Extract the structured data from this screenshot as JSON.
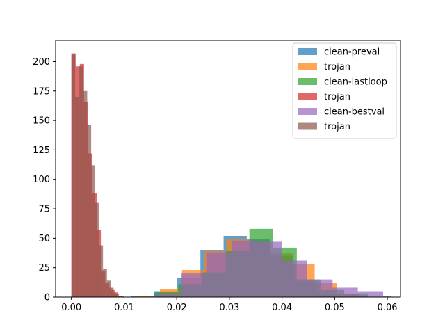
{
  "chart_data": {
    "type": "bar",
    "kind": "overlaid-histogram",
    "title": "",
    "xlabel": "",
    "ylabel": "",
    "xlim": [
      -0.003,
      0.0625
    ],
    "ylim": [
      0,
      218
    ],
    "xticks": [
      0.0,
      0.01,
      0.02,
      0.03,
      0.04,
      0.05,
      0.06
    ],
    "xtick_labels": [
      "0.00",
      "0.01",
      "0.02",
      "0.03",
      "0.04",
      "0.05",
      "0.06"
    ],
    "yticks": [
      0,
      25,
      50,
      75,
      100,
      125,
      150,
      175,
      200
    ],
    "ytick_labels": [
      "0",
      "25",
      "50",
      "75",
      "100",
      "125",
      "150",
      "175",
      "200"
    ],
    "grid": false,
    "legend_position": "top-right",
    "bar_opacity": 0.7,
    "series": [
      {
        "name": "clean-preval",
        "color": "#1f77b4",
        "bin_edges": [
          0.0113,
          0.0157,
          0.0201,
          0.0245,
          0.0289,
          0.0333,
          0.0377,
          0.0421,
          0.0465,
          0.0509
        ],
        "counts": [
          1,
          5,
          16,
          40,
          52,
          49,
          35,
          13,
          3
        ]
      },
      {
        "name": "trojan",
        "color": "#ff7f0e",
        "bin_edges": [
          0.0126,
          0.0168,
          0.021,
          0.0252,
          0.0294,
          0.0336,
          0.0378,
          0.042,
          0.0462,
          0.0504,
          0.0546
        ],
        "counts": [
          1,
          7,
          23,
          39,
          49,
          47,
          37,
          28,
          12,
          3
        ]
      },
      {
        "name": "trojan",
        "color": "#d62728",
        "bin_edges": [
          0.0,
          0.0008,
          0.0016,
          0.0024,
          0.0032,
          0.004,
          0.0048,
          0.0056,
          0.0064,
          0.0072,
          0.008,
          0.0088,
          0.0096
        ],
        "counts": [
          207,
          196,
          198,
          166,
          122,
          88,
          57,
          22,
          12,
          8,
          4,
          1
        ]
      },
      {
        "name": "clean-lastloop",
        "color": "#2ca02c",
        "bin_edges": [
          0.0158,
          0.0203,
          0.0248,
          0.0293,
          0.0338,
          0.0383,
          0.0428,
          0.0473,
          0.0518,
          0.0563
        ],
        "counts": [
          4,
          11,
          21,
          39,
          58,
          42,
          15,
          6,
          3
        ]
      },
      {
        "name": "clean-bestval",
        "color": "#9467bd",
        "bin_edges": [
          0.016,
          0.0208,
          0.0256,
          0.0304,
          0.0352,
          0.04,
          0.0448,
          0.0496,
          0.0544,
          0.0592,
          0.0608
        ],
        "counts": [
          3,
          20,
          38,
          48,
          47,
          31,
          15,
          8,
          5,
          1
        ]
      },
      {
        "name": "trojan",
        "color": "#8c564b",
        "bin_edges": [
          0.0,
          0.00075,
          0.0015,
          0.00225,
          0.003,
          0.00375,
          0.0045,
          0.00525,
          0.006,
          0.00675,
          0.0075,
          0.00825,
          0.009,
          0.01
        ],
        "counts": [
          206,
          170,
          196,
          175,
          146,
          112,
          80,
          44,
          24,
          14,
          6,
          3,
          1
        ]
      }
    ],
    "legend_order": [
      0,
      1,
      3,
      2,
      4,
      5
    ]
  }
}
